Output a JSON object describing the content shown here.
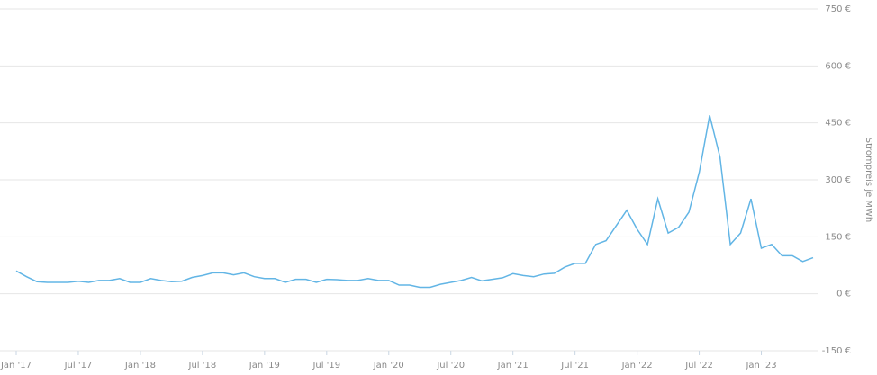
{
  "chart_data": {
    "type": "line",
    "y_label": "Strompreis je MWh",
    "x": [
      "2017-01",
      "2017-02",
      "2017-03",
      "2017-04",
      "2017-05",
      "2017-06",
      "2017-07",
      "2017-08",
      "2017-09",
      "2017-10",
      "2017-11",
      "2017-12",
      "2018-01",
      "2018-02",
      "2018-03",
      "2018-04",
      "2018-05",
      "2018-06",
      "2018-07",
      "2018-08",
      "2018-09",
      "2018-10",
      "2018-11",
      "2018-12",
      "2019-01",
      "2019-02",
      "2019-03",
      "2019-04",
      "2019-05",
      "2019-06",
      "2019-07",
      "2019-08",
      "2019-09",
      "2019-10",
      "2019-11",
      "2019-12",
      "2020-01",
      "2020-02",
      "2020-03",
      "2020-04",
      "2020-05",
      "2020-06",
      "2020-07",
      "2020-08",
      "2020-09",
      "2020-10",
      "2020-11",
      "2020-12",
      "2021-01",
      "2021-02",
      "2021-03",
      "2021-04",
      "2021-05",
      "2021-06",
      "2021-07",
      "2021-08",
      "2021-09",
      "2021-10",
      "2021-11",
      "2021-12",
      "2022-01",
      "2022-02",
      "2022-03",
      "2022-04",
      "2022-05",
      "2022-06",
      "2022-07",
      "2022-08",
      "2022-09",
      "2022-10",
      "2022-11",
      "2022-12",
      "2023-01",
      "2023-02",
      "2023-03",
      "2023-04",
      "2023-05",
      "2023-06"
    ],
    "series": [
      {
        "name": "Strompreis",
        "color": "#62b5e5",
        "axis": "y2",
        "values": [
          60,
          45,
          32,
          30,
          30,
          30,
          33,
          30,
          35,
          35,
          40,
          30,
          30,
          40,
          35,
          32,
          33,
          43,
          48,
          55,
          55,
          50,
          55,
          45,
          40,
          40,
          30,
          38,
          38,
          30,
          38,
          37,
          35,
          35,
          40,
          35,
          35,
          23,
          23,
          17,
          17,
          25,
          30,
          35,
          43,
          34,
          38,
          42,
          53,
          48,
          45,
          52,
          54,
          70,
          80,
          80,
          130,
          140,
          180,
          220,
          170,
          130,
          250,
          160,
          175,
          215,
          320,
          470,
          360,
          130,
          160,
          250,
          120,
          130,
          100,
          100,
          85,
          95
        ]
      }
    ],
    "xlim": [
      "2017-01",
      "2023-06"
    ],
    "xticks": [
      {
        "value": "2017-01",
        "label": "Jan '17"
      },
      {
        "value": "2017-07",
        "label": "Jul '17"
      },
      {
        "value": "2018-01",
        "label": "Jan '18"
      },
      {
        "value": "2018-07",
        "label": "Jul '18"
      },
      {
        "value": "2019-01",
        "label": "Jan '19"
      },
      {
        "value": "2019-07",
        "label": "Jul '19"
      },
      {
        "value": "2020-01",
        "label": "Jan '20"
      },
      {
        "value": "2020-07",
        "label": "Jul '20"
      },
      {
        "value": "2021-01",
        "label": "Jan '21"
      },
      {
        "value": "2021-07",
        "label": "Jul '21"
      },
      {
        "value": "2022-01",
        "label": "Jan '22"
      },
      {
        "value": "2022-07",
        "label": "Jul '22"
      },
      {
        "value": "2023-01",
        "label": "Jan '23"
      }
    ],
    "y2lim": [
      -150,
      750
    ],
    "y2ticks": [
      {
        "value": -150,
        "label": "-150 €"
      },
      {
        "value": 0,
        "label": "0 €"
      },
      {
        "value": 150,
        "label": "150 €"
      },
      {
        "value": 300,
        "label": "300 €"
      },
      {
        "value": 450,
        "label": "450 €"
      },
      {
        "value": 600,
        "label": "600 €"
      },
      {
        "value": 750,
        "label": "750 €"
      }
    ],
    "grid": true
  }
}
